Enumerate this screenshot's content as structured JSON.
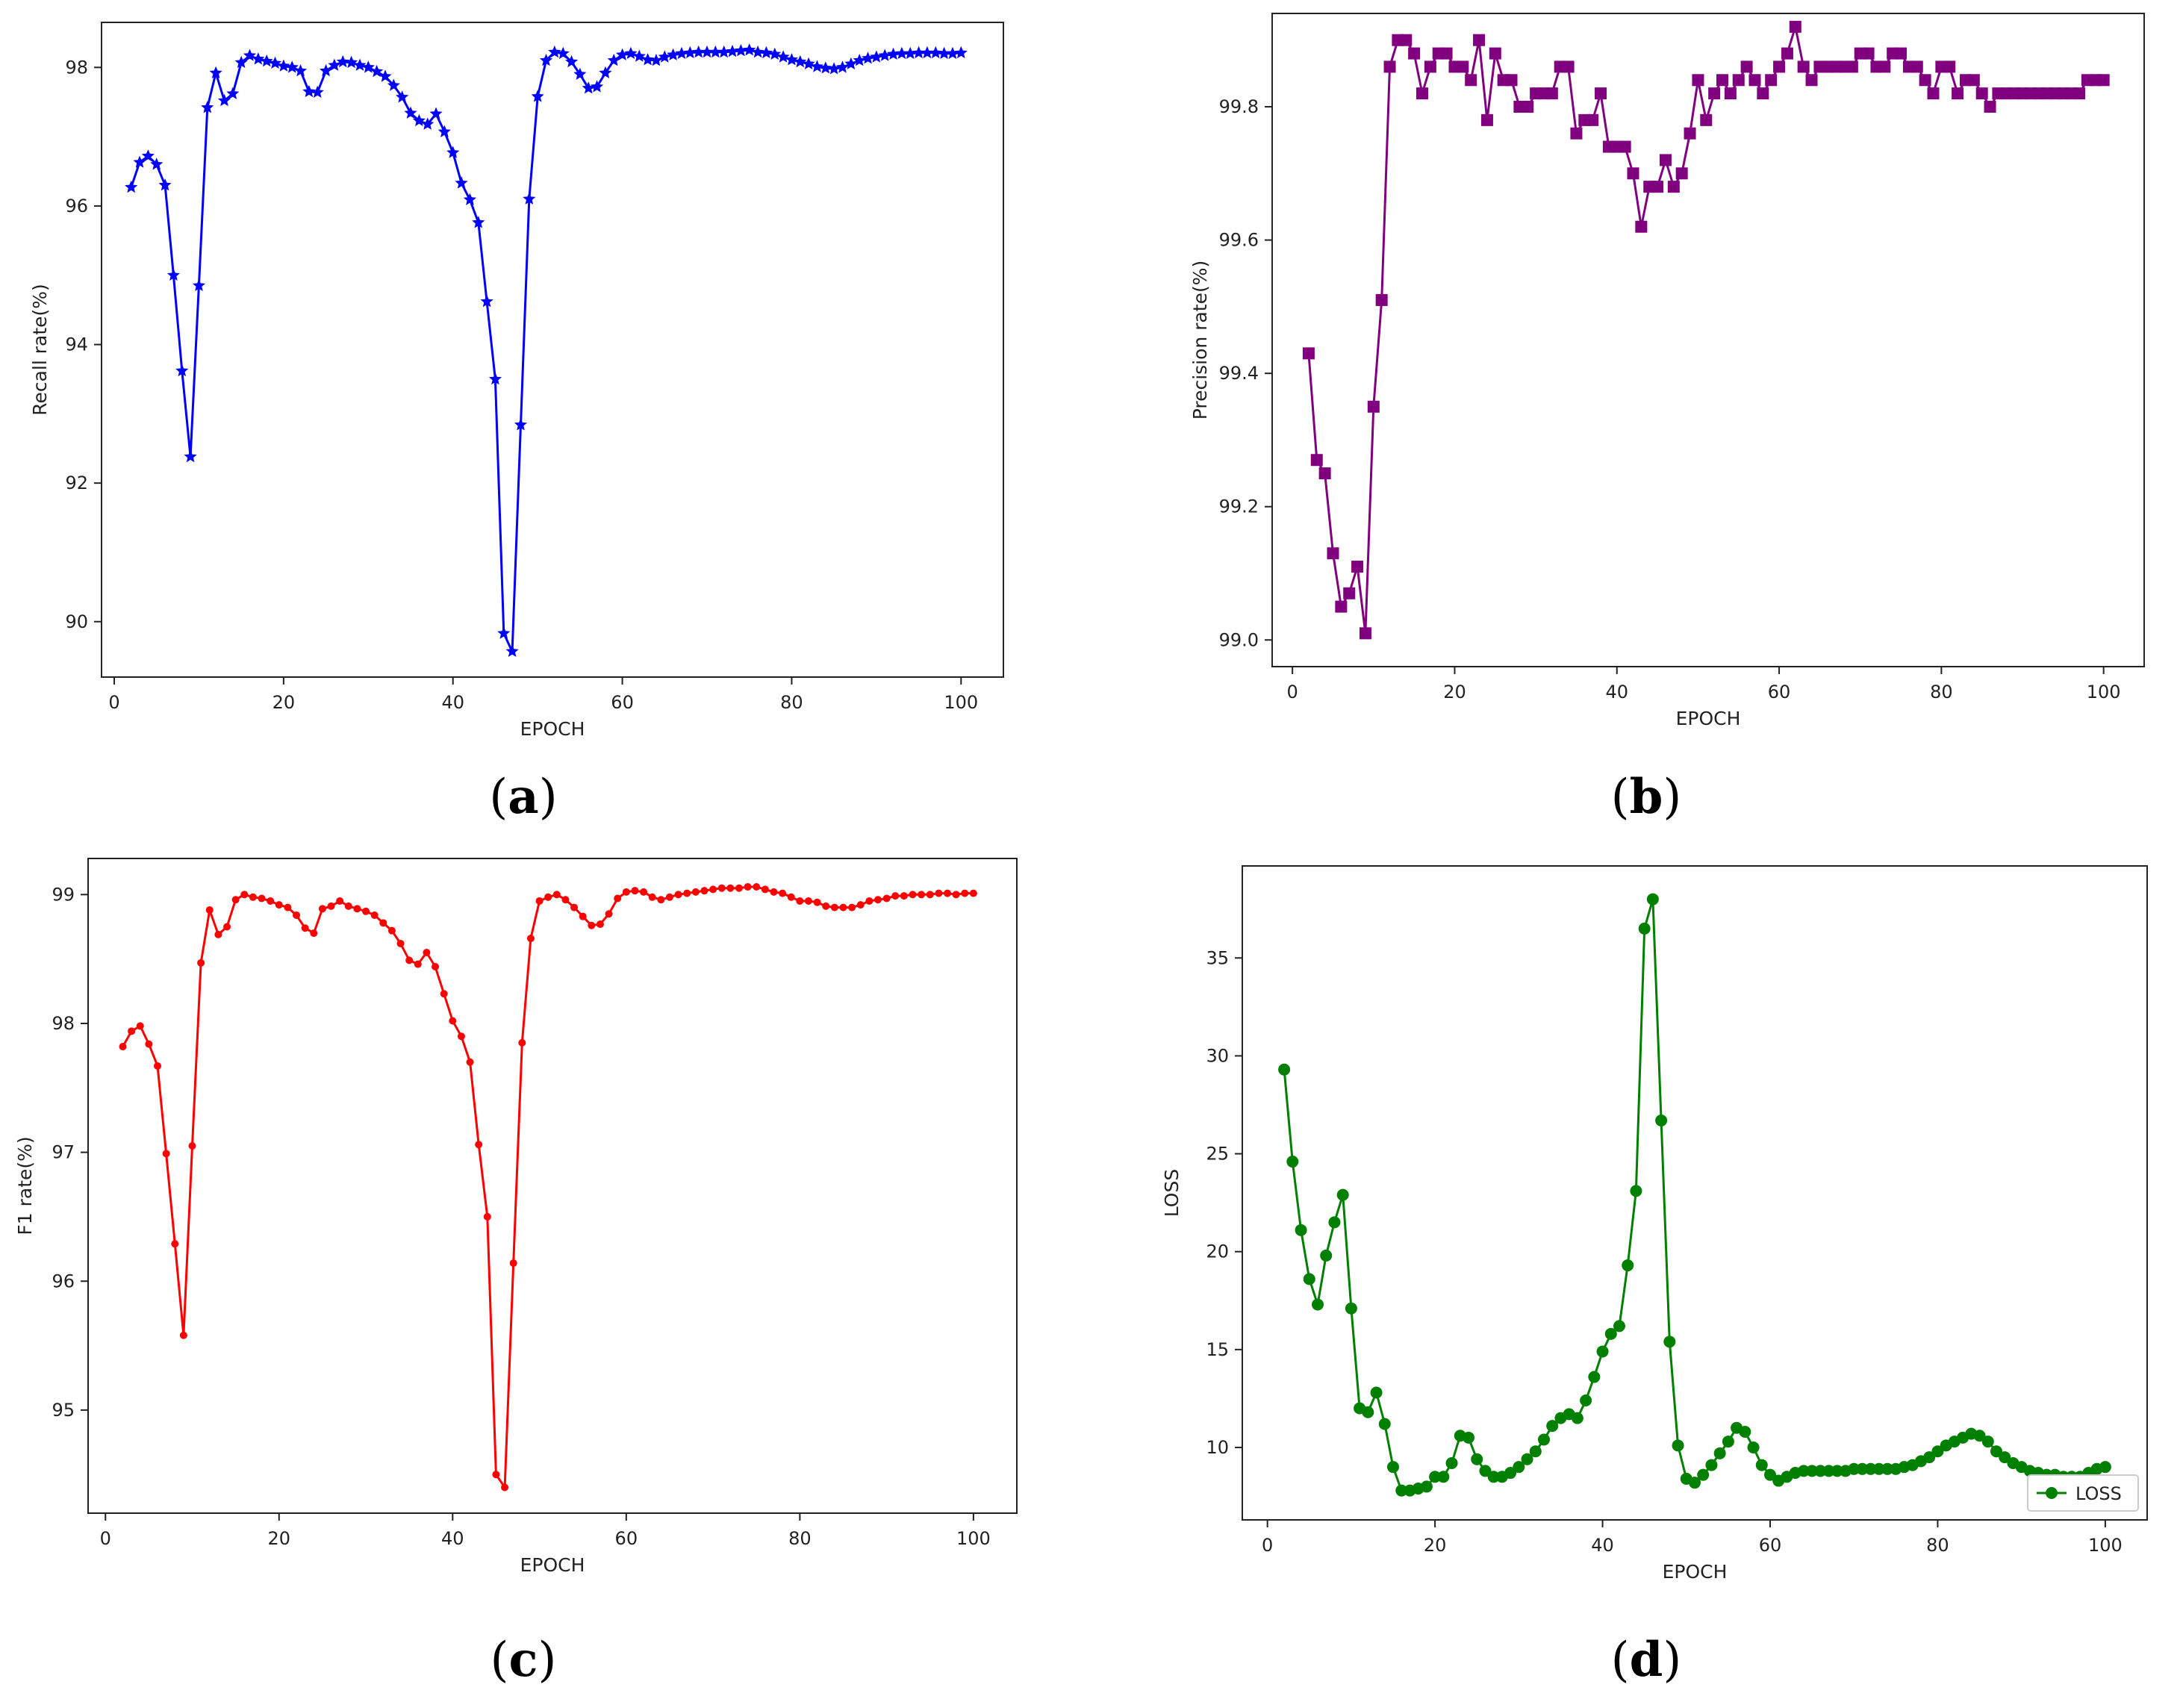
{
  "captions": [
    "(a)",
    "(b)",
    "(c)",
    "(d)"
  ],
  "caption_letters": [
    "a",
    "b",
    "c",
    "d"
  ],
  "chart_data": [
    {
      "type": "line",
      "xlabel": "EPOCH",
      "ylabel": "Recall rate(%)",
      "xlim": [
        -1.5,
        105
      ],
      "ylim": [
        89.2,
        98.65
      ],
      "xticks": [
        0,
        20,
        40,
        60,
        80,
        100
      ],
      "yticks": [
        90,
        92,
        94,
        96,
        98
      ],
      "color": "#0000ff",
      "marker": "star",
      "legend": null,
      "series": [
        {
          "x": [
            2,
            3,
            4,
            5,
            6,
            7,
            8,
            9,
            10,
            11,
            12,
            13,
            14,
            15,
            16,
            17,
            18,
            19,
            20,
            21,
            22,
            23,
            24,
            25,
            26,
            27,
            28,
            29,
            30,
            31,
            32,
            33,
            34,
            35,
            36,
            37,
            38,
            39,
            40,
            41,
            42,
            43,
            44,
            45,
            46,
            47,
            48,
            49,
            50,
            51,
            52,
            53,
            54,
            55,
            56,
            57,
            58,
            59,
            60,
            61,
            62,
            63,
            64,
            65,
            66,
            67,
            68,
            69,
            70,
            71,
            72,
            73,
            74,
            75,
            76,
            77,
            78,
            79,
            80,
            81,
            82,
            83,
            84,
            85,
            86,
            87,
            88,
            89,
            90,
            91,
            92,
            93,
            94,
            95,
            96,
            97,
            98,
            99,
            100
          ],
          "values": [
            96.27,
            96.63,
            96.72,
            96.6,
            96.3,
            95,
            93.62,
            92.38,
            94.85,
            97.42,
            97.92,
            97.52,
            97.62,
            98.07,
            98.17,
            98.12,
            98.09,
            98.06,
            98.02,
            98.0,
            97.95,
            97.65,
            97.64,
            97.95,
            98.03,
            98.08,
            98.07,
            98.03,
            98.0,
            97.94,
            97.87,
            97.74,
            97.57,
            97.34,
            97.23,
            97.18,
            97.33,
            97.07,
            96.77,
            96.33,
            96.09,
            95.76,
            94.62,
            93.5,
            89.83,
            89.57,
            92.84,
            96.1,
            97.58,
            98.1,
            98.22,
            98.2,
            98.08,
            97.9,
            97.7,
            97.72,
            97.92,
            98.1,
            98.18,
            98.2,
            98.16,
            98.11,
            98.1,
            98.15,
            98.18,
            98.2,
            98.21,
            98.22,
            98.22,
            98.22,
            98.22,
            98.23,
            98.24,
            98.25,
            98.22,
            98.21,
            98.19,
            98.15,
            98.11,
            98.08,
            98.05,
            98.01,
            97.99,
            97.98,
            98.0,
            98.05,
            98.1,
            98.13,
            98.15,
            98.17,
            98.19,
            98.2,
            98.2,
            98.21,
            98.21,
            98.21,
            98.2,
            98.2,
            98.21
          ]
        }
      ]
    },
    {
      "type": "line",
      "xlabel": "EPOCH",
      "ylabel": "Precision rate(%)",
      "xlim": [
        -2.5,
        105
      ],
      "ylim": [
        98.96,
        99.94
      ],
      "xticks": [
        0,
        20,
        40,
        60,
        80,
        100
      ],
      "yticks": [
        99.0,
        99.2,
        99.4,
        99.6,
        99.8
      ],
      "ytick_labels": [
        "99.0",
        "99.2",
        "99.4",
        "99.6",
        "99.8"
      ],
      "color": "#800080",
      "marker": "square",
      "legend": null,
      "series": [
        {
          "x": [
            2,
            3,
            4,
            5,
            6,
            7,
            8,
            9,
            10,
            11,
            12,
            13,
            14,
            15,
            16,
            17,
            18,
            19,
            20,
            21,
            22,
            23,
            24,
            25,
            26,
            27,
            28,
            29,
            30,
            31,
            32,
            33,
            34,
            35,
            36,
            37,
            38,
            39,
            40,
            41,
            42,
            43,
            44,
            45,
            46,
            47,
            48,
            49,
            50,
            51,
            52,
            53,
            54,
            55,
            56,
            57,
            58,
            59,
            60,
            61,
            62,
            63,
            64,
            65,
            66,
            67,
            68,
            69,
            70,
            71,
            72,
            73,
            74,
            75,
            76,
            77,
            78,
            79,
            80,
            81,
            82,
            83,
            84,
            85,
            86,
            87,
            88,
            89,
            90,
            91,
            92,
            93,
            94,
            95,
            96,
            97,
            98,
            99,
            100
          ],
          "values": [
            99.43,
            99.27,
            99.25,
            99.13,
            99.05,
            99.07,
            99.11,
            99.01,
            99.35,
            99.51,
            99.86,
            99.9,
            99.9,
            99.88,
            99.82,
            99.86,
            99.88,
            99.88,
            99.86,
            99.86,
            99.84,
            99.9,
            99.78,
            99.88,
            99.84,
            99.84,
            99.8,
            99.8,
            99.82,
            99.82,
            99.82,
            99.86,
            99.86,
            99.76,
            99.78,
            99.78,
            99.82,
            99.74,
            99.74,
            99.74,
            99.7,
            99.62,
            99.68,
            99.68,
            99.72,
            99.68,
            99.7,
            99.76,
            99.84,
            99.78,
            99.82,
            99.84,
            99.82,
            99.84,
            99.86,
            99.84,
            99.82,
            99.84,
            99.86,
            99.88,
            99.92,
            99.86,
            99.84,
            99.86,
            99.86,
            99.86,
            99.86,
            99.86,
            99.88,
            99.88,
            99.86,
            99.86,
            99.88,
            99.88,
            99.86,
            99.86,
            99.84,
            99.82,
            99.86,
            99.86,
            99.82,
            99.84,
            99.84,
            99.82,
            99.8,
            99.82,
            99.82,
            99.82,
            99.82,
            99.82,
            99.82,
            99.82,
            99.82,
            99.82,
            99.82,
            99.82,
            99.84,
            99.84,
            99.84
          ]
        }
      ]
    },
    {
      "type": "line",
      "xlabel": "EPOCH",
      "ylabel": "F1 rate(%)",
      "xlim": [
        -2,
        105
      ],
      "ylim": [
        94.2,
        99.28
      ],
      "xticks": [
        0,
        20,
        40,
        60,
        80,
        100
      ],
      "yticks": [
        95,
        96,
        97,
        98,
        99
      ],
      "color": "#ff0000",
      "marker": "dot",
      "legend": null,
      "series": [
        {
          "x": [
            2,
            3,
            4,
            5,
            6,
            7,
            8,
            9,
            10,
            11,
            12,
            13,
            14,
            15,
            16,
            17,
            18,
            19,
            20,
            21,
            22,
            23,
            24,
            25,
            26,
            27,
            28,
            29,
            30,
            31,
            32,
            33,
            34,
            35,
            36,
            37,
            38,
            39,
            40,
            41,
            42,
            43,
            44,
            45,
            46,
            47,
            48,
            49,
            50,
            51,
            52,
            53,
            54,
            55,
            56,
            57,
            58,
            59,
            60,
            61,
            62,
            63,
            64,
            65,
            66,
            67,
            68,
            69,
            70,
            71,
            72,
            73,
            74,
            75,
            76,
            77,
            78,
            79,
            80,
            81,
            82,
            83,
            84,
            85,
            86,
            87,
            88,
            89,
            90,
            91,
            92,
            93,
            94,
            95,
            96,
            97,
            98,
            99,
            100
          ],
          "values": [
            97.82,
            97.94,
            97.98,
            97.84,
            97.67,
            96.99,
            96.29,
            95.58,
            97.05,
            98.47,
            98.88,
            98.69,
            98.75,
            98.96,
            99.0,
            98.98,
            98.97,
            98.95,
            98.92,
            98.9,
            98.84,
            98.74,
            98.7,
            98.89,
            98.91,
            98.95,
            98.91,
            98.89,
            98.87,
            98.84,
            98.78,
            98.72,
            98.62,
            98.49,
            98.46,
            98.55,
            98.44,
            98.23,
            98.02,
            97.9,
            97.7,
            97.06,
            96.5,
            94.5,
            94.4,
            96.14,
            97.85,
            98.66,
            98.95,
            98.98,
            99.0,
            98.96,
            98.9,
            98.83,
            98.76,
            98.77,
            98.85,
            98.97,
            99.02,
            99.03,
            99.02,
            98.98,
            98.96,
            98.98,
            99.0,
            99.01,
            99.02,
            99.03,
            99.04,
            99.05,
            99.05,
            99.05,
            99.06,
            99.06,
            99.04,
            99.02,
            99.01,
            98.98,
            98.95,
            98.95,
            98.94,
            98.91,
            98.9,
            98.9,
            98.9,
            98.92,
            98.95,
            98.96,
            98.97,
            98.99,
            98.99,
            99.0,
            99.0,
            99.0,
            99.01,
            99.01,
            99.0,
            99.01,
            99.01
          ]
        }
      ]
    },
    {
      "type": "line",
      "xlabel": "EPOCH",
      "ylabel": "LOSS",
      "xlim": [
        -3,
        105
      ],
      "ylim": [
        6.3,
        39.7
      ],
      "xticks": [
        0,
        20,
        40,
        60,
        80,
        100
      ],
      "yticks": [
        10,
        15,
        20,
        25,
        30,
        35
      ],
      "color": "#008000",
      "marker": "circle",
      "legend": {
        "position": "lower-right",
        "entries": [
          "LOSS"
        ]
      },
      "series": [
        {
          "name": "LOSS",
          "x": [
            2,
            3,
            4,
            5,
            6,
            7,
            8,
            9,
            10,
            11,
            12,
            13,
            14,
            15,
            16,
            17,
            18,
            19,
            20,
            21,
            22,
            23,
            24,
            25,
            26,
            27,
            28,
            29,
            30,
            31,
            32,
            33,
            34,
            35,
            36,
            37,
            38,
            39,
            40,
            41,
            42,
            43,
            44,
            45,
            46,
            47,
            48,
            49,
            50,
            51,
            52,
            53,
            54,
            55,
            56,
            57,
            58,
            59,
            60,
            61,
            62,
            63,
            64,
            65,
            66,
            67,
            68,
            69,
            70,
            71,
            72,
            73,
            74,
            75,
            76,
            77,
            78,
            79,
            80,
            81,
            82,
            83,
            84,
            85,
            86,
            87,
            88,
            89,
            90,
            91,
            92,
            93,
            94,
            95,
            96,
            97,
            98,
            99,
            100
          ],
          "values": [
            29.3,
            24.6,
            21.1,
            18.6,
            17.3,
            19.8,
            21.5,
            22.9,
            17.1,
            12.0,
            11.8,
            12.8,
            11.2,
            9.0,
            7.8,
            7.8,
            7.9,
            8.0,
            8.5,
            8.5,
            9.2,
            10.6,
            10.5,
            9.4,
            8.8,
            8.5,
            8.5,
            8.7,
            9.0,
            9.4,
            9.8,
            10.4,
            11.1,
            11.5,
            11.7,
            11.5,
            12.4,
            13.6,
            14.9,
            15.8,
            16.2,
            19.3,
            23.1,
            36.5,
            38.0,
            26.7,
            15.4,
            10.1,
            8.4,
            8.2,
            8.6,
            9.1,
            9.7,
            10.3,
            11.0,
            10.8,
            10.0,
            9.1,
            8.6,
            8.3,
            8.5,
            8.7,
            8.8,
            8.8,
            8.8,
            8.8,
            8.8,
            8.8,
            8.9,
            8.9,
            8.9,
            8.9,
            8.9,
            8.9,
            9.0,
            9.1,
            9.3,
            9.5,
            9.8,
            10.1,
            10.3,
            10.5,
            10.7,
            10.6,
            10.3,
            9.8,
            9.5,
            9.2,
            9.0,
            8.8,
            8.7,
            8.6,
            8.6,
            8.5,
            8.5,
            8.5,
            8.7,
            8.9,
            9.0
          ]
        }
      ]
    }
  ]
}
